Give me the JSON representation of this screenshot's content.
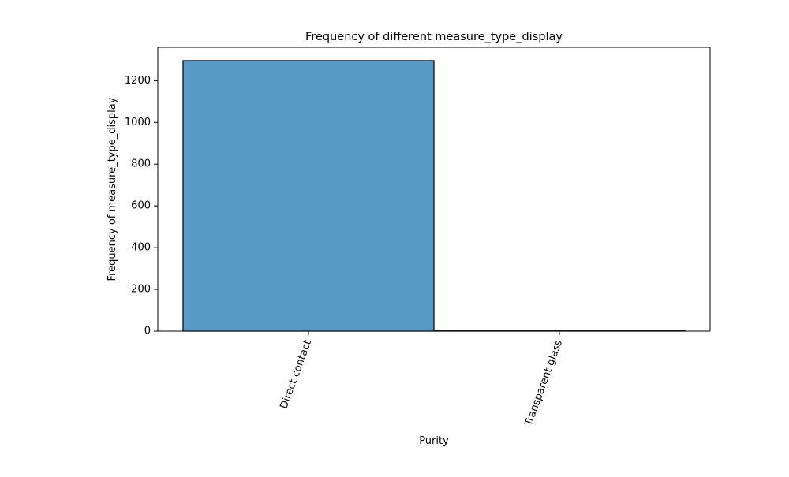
{
  "chart_data": {
    "type": "bar",
    "title": "Frequency of different measure_type_display",
    "xlabel": "Purity",
    "ylabel": "Frequency of measure_type_display",
    "categories": [
      "Direct contact",
      "Transparent glass"
    ],
    "values": [
      1296,
      5
    ],
    "ylim": [
      0,
      1360
    ],
    "yticks": [
      0,
      200,
      400,
      600,
      800,
      1000,
      1200
    ],
    "ytick_labels": [
      "0",
      "200",
      "400",
      "600",
      "800",
      "1000",
      "1200"
    ],
    "grid": false,
    "legend": "none",
    "bar_color": "#5799c7",
    "edge_color": "#000000"
  }
}
